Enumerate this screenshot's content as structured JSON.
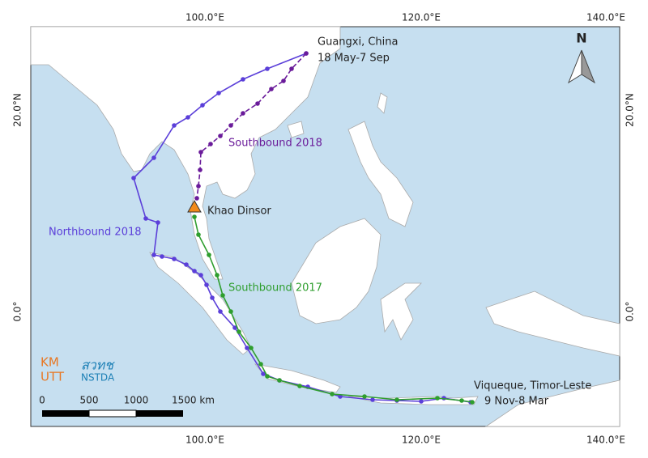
{
  "map": {
    "longitude_labels": [
      "100.0°E",
      "120.0°E",
      "140.0°E"
    ],
    "latitude_labels": [
      "20.0°N",
      "0.0°"
    ],
    "north_arrow": "N",
    "locations": [
      {
        "name": "Guangxi, China",
        "dates": "18 May-7 Sep"
      },
      {
        "name": "Khao Dinsor"
      },
      {
        "name": "Viqueque, Timor-Leste",
        "dates": "9 Nov-8 Mar"
      }
    ],
    "routes": [
      {
        "name": "Northbound 2018",
        "color": "#5b3fd9"
      },
      {
        "name": "Southbound 2018",
        "color": "#6a1b9a"
      },
      {
        "name": "Southbound 2017",
        "color": "#2e9e2e"
      }
    ],
    "scale_bar": [
      "0",
      "500",
      "1000",
      "1500 km"
    ],
    "logos": {
      "kmutt": [
        "KM",
        "UTT"
      ],
      "nstda": [
        "สวทช",
        "NSTDA"
      ]
    }
  }
}
